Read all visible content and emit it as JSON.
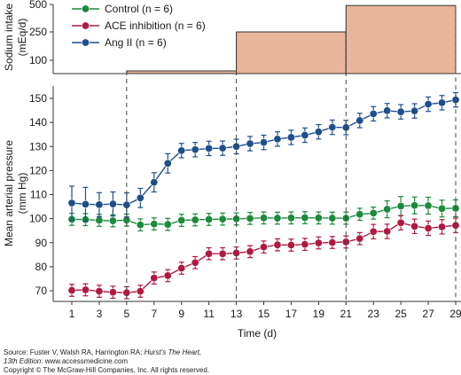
{
  "chart_data": {
    "type": "line",
    "xlabel": "Time (d)",
    "x_ticks": [
      1,
      3,
      5,
      7,
      9,
      11,
      13,
      15,
      17,
      19,
      21,
      23,
      25,
      27,
      29
    ],
    "xlim": [
      0,
      30
    ],
    "top_panel": {
      "ylabel_line1": "Sodium intake",
      "ylabel_line2": "(mEq/d)",
      "y_ticks": [
        100,
        250,
        500
      ],
      "steps": [
        {
          "x_start": 5,
          "x_end": 13,
          "value": 80
        },
        {
          "x_start": 13,
          "x_end": 21,
          "value": 250
        },
        {
          "x_start": 21,
          "x_end": 29,
          "value": 490
        }
      ],
      "fill_color": "#e8b49a",
      "edge_color": "#333333"
    },
    "bottom_panel": {
      "ylabel_line1": "Mean arterial pressure",
      "ylabel_line2": "(mm Hg)",
      "ylim": [
        64,
        156
      ],
      "y_ticks": [
        70,
        80,
        90,
        100,
        110,
        120,
        130,
        140,
        150
      ],
      "series": [
        {
          "name": "Control (n = 6)",
          "color": "#1b8a3c",
          "x": [
            1,
            2,
            3,
            4,
            5,
            6,
            7,
            8,
            9,
            10,
            11,
            12,
            13,
            14,
            15,
            16,
            17,
            18,
            19,
            20,
            21,
            22,
            23,
            24,
            25,
            26,
            27,
            28,
            29
          ],
          "values": [
            99.7,
            99.6,
            99.3,
            99.1,
            99.4,
            97.4,
            97.8,
            97.6,
            99.3,
            99.5,
            99.7,
            99.8,
            99.9,
            100.1,
            100.3,
            100.2,
            100.3,
            100.4,
            100.3,
            100.2,
            100.2,
            101.8,
            102.3,
            103.9,
            105.2,
            105.5,
            105.4,
            104.2,
            104.3
          ],
          "errors": [
            2.5,
            2.5,
            2.5,
            2.5,
            2.5,
            2.5,
            2.5,
            2.5,
            2.5,
            2.5,
            2.5,
            2.5,
            2.5,
            2.5,
            2.5,
            2.5,
            2.5,
            2.5,
            2.5,
            2.5,
            2.5,
            2.5,
            2.5,
            3.5,
            4.0,
            3.5,
            3.5,
            3.5,
            3.5
          ]
        },
        {
          "name": "ACE inhibition (n = 6)",
          "color": "#b01a40",
          "x": [
            1,
            2,
            3,
            4,
            5,
            6,
            7,
            8,
            9,
            10,
            11,
            12,
            13,
            14,
            15,
            16,
            17,
            18,
            19,
            20,
            21,
            22,
            23,
            24,
            25,
            26,
            27,
            28,
            29
          ],
          "values": [
            70.2,
            70.4,
            69.8,
            69.4,
            69.2,
            69.8,
            75.3,
            76.3,
            79.4,
            81.7,
            85.4,
            85.4,
            85.7,
            86.3,
            88.2,
            89.1,
            89.0,
            89.3,
            89.9,
            90.1,
            90.3,
            91.7,
            94.6,
            94.7,
            98.3,
            96.8,
            96.0,
            96.6,
            97.2
          ],
          "errors": [
            2.5,
            2.5,
            2.5,
            2.5,
            2.5,
            2.5,
            2.5,
            2.5,
            2.5,
            2.5,
            2.5,
            2.5,
            2.5,
            2.5,
            2.5,
            2.5,
            2.5,
            2.5,
            2.5,
            2.5,
            2.5,
            2.5,
            3.0,
            3.0,
            3.0,
            3.0,
            3.0,
            3.0,
            3.0
          ]
        },
        {
          "name": "Ang II (n = 6)",
          "color": "#1f4e8c",
          "x": [
            1,
            2,
            3,
            4,
            5,
            6,
            7,
            8,
            9,
            10,
            11,
            12,
            13,
            14,
            15,
            16,
            17,
            18,
            19,
            20,
            21,
            22,
            23,
            24,
            25,
            26,
            27,
            28,
            29
          ],
          "values": [
            106.5,
            106.0,
            105.8,
            106.1,
            105.7,
            108.6,
            115.1,
            123.0,
            128.3,
            128.7,
            129.2,
            129.3,
            130.0,
            131.2,
            131.7,
            133.1,
            133.8,
            134.7,
            136.1,
            138.0,
            137.9,
            140.8,
            143.6,
            144.9,
            144.4,
            144.8,
            147.6,
            148.2,
            149.4
          ],
          "errors": [
            7.0,
            7.0,
            5.0,
            5.0,
            5.0,
            4.0,
            4.0,
            4.0,
            3.0,
            3.0,
            3.0,
            3.0,
            3.0,
            3.0,
            3.0,
            3.0,
            3.0,
            3.0,
            3.0,
            3.0,
            3.0,
            3.0,
            3.0,
            3.0,
            3.0,
            3.0,
            3.0,
            3.0,
            3.0
          ]
        }
      ]
    },
    "vertical_dividers": [
      5,
      13,
      21,
      29
    ]
  },
  "source": {
    "line1_prefix": "Source: Fuster V, Walsh RA, Harrington RA: ",
    "line1_title": "Hurst's The Heart,",
    "line2_edition": "13th Edition",
    "line2_rest": ": www.accessmedicine.com",
    "line3": "Copyright © The McGraw-Hill Companies, Inc. All rights reserved."
  }
}
